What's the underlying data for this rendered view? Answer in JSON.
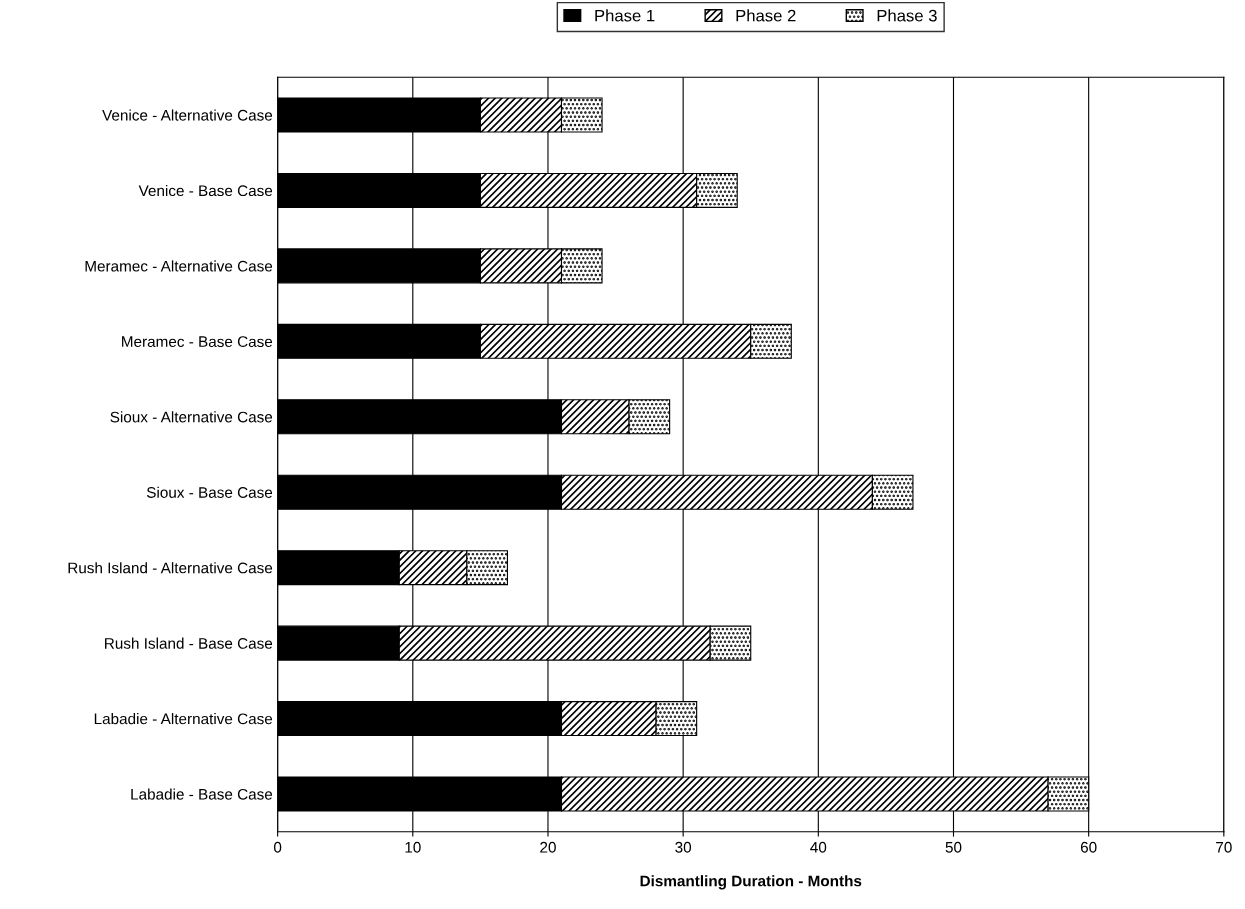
{
  "chart_data": {
    "type": "bar",
    "orientation": "horizontal",
    "stacked": true,
    "categories": [
      "Venice - Alternative Case",
      "Venice - Base Case",
      "Meramec - Alternative Case",
      "Meramec - Base Case",
      "Sioux - Alternative Case",
      "Sioux - Base Case",
      "Rush Island - Alternative Case",
      "Rush Island - Base Case",
      "Labadie - Alternative Case",
      "Labadie - Base Case"
    ],
    "series": [
      {
        "name": "Phase 1",
        "color": "#000000",
        "values": [
          15,
          15,
          15,
          15,
          21,
          21,
          9,
          9,
          21,
          21
        ]
      },
      {
        "name": "Phase 2",
        "color": "#000000",
        "values": [
          6,
          16,
          6,
          20,
          5,
          23,
          5,
          23,
          7,
          36
        ]
      },
      {
        "name": "Phase 3",
        "color": "#000000",
        "values": [
          3,
          3,
          3,
          3,
          3,
          3,
          3,
          3,
          3,
          3
        ]
      }
    ],
    "xlabel": "Dismantling Duration - Months",
    "xlim": [
      0,
      70
    ],
    "xticks": [
      0,
      10,
      20,
      30,
      40,
      50,
      60,
      70
    ],
    "grid": "x",
    "legend": "top"
  }
}
